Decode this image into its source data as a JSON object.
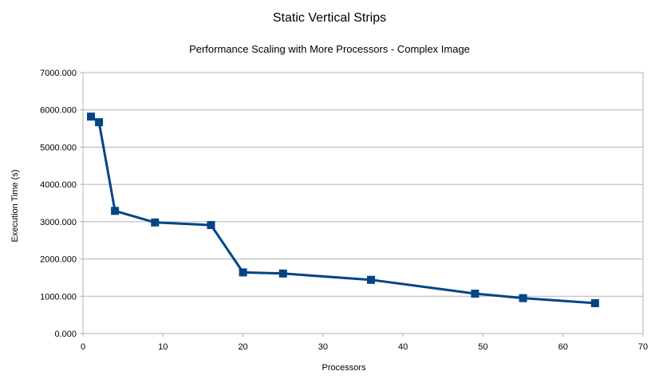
{
  "chart_data": {
    "type": "line",
    "title": "Static Vertical Strips",
    "subtitle": "Performance Scaling with More Processors - Complex Image",
    "xlabel": "Processors",
    "ylabel": "Execution Time (s)",
    "xlim": [
      0,
      70
    ],
    "ylim": [
      0,
      7000
    ],
    "x_ticks": [
      "0",
      "10",
      "20",
      "30",
      "40",
      "50",
      "60",
      "70"
    ],
    "y_ticks": [
      "0.000",
      "1000.000",
      "2000.000",
      "3000.000",
      "4000.000",
      "5000.000",
      "6000.000",
      "7000.000"
    ],
    "grid": true,
    "legend": "none",
    "series": [
      {
        "color": "#004586",
        "marker": "square",
        "x": [
          1,
          2,
          4,
          9,
          16,
          20,
          25,
          36,
          49,
          55,
          64
        ],
        "y": [
          5820,
          5670,
          3290,
          2980,
          2910,
          1640,
          1610,
          1440,
          1070,
          950,
          815
        ]
      }
    ]
  }
}
